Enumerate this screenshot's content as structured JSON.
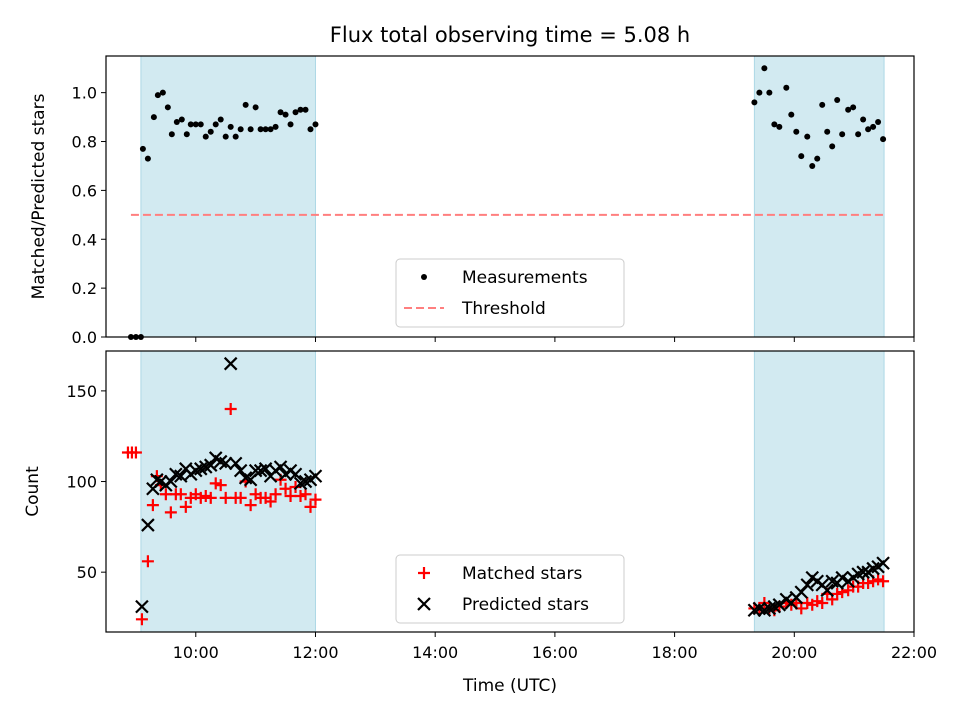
{
  "title": "Flux total observing time = 5.08 h",
  "xlabel": "Time (UTC)",
  "x_ticks": [
    "10:00",
    "12:00",
    "14:00",
    "16:00",
    "18:00",
    "20:00",
    "22:00"
  ],
  "colors": {
    "band": "#add8e6",
    "threshold": "#ff7f7f",
    "matched": "#ff0000",
    "predicted": "#000000",
    "measurement": "#000000"
  },
  "chart_data": [
    {
      "type": "scatter",
      "ylabel": "Matched/Predicted stars",
      "xlim": [
        "08:30",
        "22:00"
      ],
      "ylim": [
        0,
        1.15
      ],
      "y_ticks": [
        "0.0",
        "0.2",
        "0.4",
        "0.6",
        "0.8",
        "1.0"
      ],
      "grid": false,
      "legend_position": "lower-center",
      "observing_windows": [
        [
          "09:05",
          "12:00"
        ],
        [
          "19:20",
          "21:30"
        ]
      ],
      "series": [
        {
          "name": "Measurements",
          "marker": "dot",
          "points": [
            [
              "08:55",
              0.0
            ],
            [
              "09:00",
              0.0
            ],
            [
              "09:05",
              0.0
            ],
            [
              "09:07",
              0.77
            ],
            [
              "09:12",
              0.73
            ],
            [
              "09:18",
              0.9
            ],
            [
              "09:22",
              0.99
            ],
            [
              "09:27",
              1.0
            ],
            [
              "09:32",
              0.94
            ],
            [
              "09:36",
              0.83
            ],
            [
              "09:41",
              0.88
            ],
            [
              "09:46",
              0.89
            ],
            [
              "09:51",
              0.83
            ],
            [
              "09:55",
              0.87
            ],
            [
              "10:00",
              0.87
            ],
            [
              "10:05",
              0.87
            ],
            [
              "10:10",
              0.82
            ],
            [
              "10:15",
              0.84
            ],
            [
              "10:20",
              0.87
            ],
            [
              "10:25",
              0.89
            ],
            [
              "10:30",
              0.82
            ],
            [
              "10:35",
              0.86
            ],
            [
              "10:40",
              0.82
            ],
            [
              "10:45",
              0.85
            ],
            [
              "10:50",
              0.95
            ],
            [
              "10:55",
              0.85
            ],
            [
              "11:00",
              0.94
            ],
            [
              "11:05",
              0.85
            ],
            [
              "11:10",
              0.85
            ],
            [
              "11:15",
              0.85
            ],
            [
              "11:20",
              0.86
            ],
            [
              "11:25",
              0.92
            ],
            [
              "11:30",
              0.91
            ],
            [
              "11:35",
              0.87
            ],
            [
              "11:40",
              0.92
            ],
            [
              "11:45",
              0.93
            ],
            [
              "11:50",
              0.93
            ],
            [
              "11:55",
              0.85
            ],
            [
              "12:00",
              0.87
            ],
            [
              "19:20",
              0.96
            ],
            [
              "19:25",
              1.0
            ],
            [
              "19:30",
              1.1
            ],
            [
              "19:35",
              1.0
            ],
            [
              "19:40",
              0.87
            ],
            [
              "19:45",
              0.86
            ],
            [
              "19:52",
              1.02
            ],
            [
              "19:57",
              0.91
            ],
            [
              "20:02",
              0.84
            ],
            [
              "20:07",
              0.74
            ],
            [
              "20:13",
              0.82
            ],
            [
              "20:18",
              0.7
            ],
            [
              "20:23",
              0.73
            ],
            [
              "20:28",
              0.95
            ],
            [
              "20:33",
              0.84
            ],
            [
              "20:38",
              0.78
            ],
            [
              "20:43",
              0.97
            ],
            [
              "20:48",
              0.83
            ],
            [
              "20:54",
              0.93
            ],
            [
              "20:59",
              0.94
            ],
            [
              "21:04",
              0.83
            ],
            [
              "21:09",
              0.89
            ],
            [
              "21:14",
              0.85
            ],
            [
              "21:19",
              0.86
            ],
            [
              "21:24",
              0.88
            ],
            [
              "21:29",
              0.81
            ]
          ]
        },
        {
          "name": "Threshold",
          "style": "dashed",
          "points": [
            [
              "08:55",
              0.5
            ],
            [
              "21:30",
              0.5
            ]
          ]
        }
      ]
    },
    {
      "type": "scatter",
      "ylabel": "Count",
      "xlim": [
        "08:30",
        "22:00"
      ],
      "ylim": [
        17,
        172
      ],
      "y_ticks": [
        "50",
        "100",
        "150"
      ],
      "grid": false,
      "legend_position": "lower-center",
      "observing_windows": [
        [
          "09:05",
          "12:00"
        ],
        [
          "19:20",
          "21:30"
        ]
      ],
      "series": [
        {
          "name": "Matched stars",
          "marker": "plus",
          "points": [
            [
              "08:52",
              116
            ],
            [
              "08:56",
              116
            ],
            [
              "09:00",
              116
            ],
            [
              "09:06",
              24
            ],
            [
              "09:12",
              56
            ],
            [
              "09:17",
              87
            ],
            [
              "09:21",
              103
            ],
            [
              "09:25",
              98
            ],
            [
              "09:30",
              93
            ],
            [
              "09:35",
              83
            ],
            [
              "09:40",
              93
            ],
            [
              "09:45",
              93
            ],
            [
              "09:50",
              86
            ],
            [
              "09:55",
              91
            ],
            [
              "10:00",
              93
            ],
            [
              "10:05",
              91
            ],
            [
              "10:10",
              92
            ],
            [
              "10:15",
              91
            ],
            [
              "10:20",
              99
            ],
            [
              "10:25",
              98
            ],
            [
              "10:30",
              91
            ],
            [
              "10:35",
              140
            ],
            [
              "10:40",
              91
            ],
            [
              "10:45",
              91
            ],
            [
              "10:50",
              100
            ],
            [
              "10:55",
              87
            ],
            [
              "11:00",
              93
            ],
            [
              "11:05",
              91
            ],
            [
              "11:10",
              91
            ],
            [
              "11:15",
              89
            ],
            [
              "11:20",
              93
            ],
            [
              "11:25",
              101
            ],
            [
              "11:30",
              96
            ],
            [
              "11:35",
              92
            ],
            [
              "11:40",
              97
            ],
            [
              "11:45",
              92
            ],
            [
              "11:50",
              93
            ],
            [
              "11:55",
              86
            ],
            [
              "12:00",
              90
            ],
            [
              "19:20",
              30
            ],
            [
              "19:25",
              30
            ],
            [
              "19:30",
              33
            ],
            [
              "19:35",
              30
            ],
            [
              "19:40",
              29
            ],
            [
              "19:45",
              31
            ],
            [
              "19:52",
              33
            ],
            [
              "19:57",
              32
            ],
            [
              "20:02",
              33
            ],
            [
              "20:07",
              30
            ],
            [
              "20:13",
              33
            ],
            [
              "20:18",
              32
            ],
            [
              "20:23",
              34
            ],
            [
              "20:28",
              33
            ],
            [
              "20:33",
              38
            ],
            [
              "20:38",
              35
            ],
            [
              "20:43",
              38
            ],
            [
              "20:48",
              39
            ],
            [
              "20:54",
              40
            ],
            [
              "20:59",
              42
            ],
            [
              "21:04",
              42
            ],
            [
              "21:09",
              44
            ],
            [
              "21:14",
              44
            ],
            [
              "21:19",
              45
            ],
            [
              "21:24",
              46
            ],
            [
              "21:29",
              45
            ]
          ]
        },
        {
          "name": "Predicted stars",
          "marker": "x",
          "points": [
            [
              "09:06",
              31
            ],
            [
              "09:12",
              76
            ],
            [
              "09:17",
              96
            ],
            [
              "09:21",
              101
            ],
            [
              "09:25",
              100
            ],
            [
              "09:30",
              98
            ],
            [
              "09:35",
              100
            ],
            [
              "09:40",
              104
            ],
            [
              "09:45",
              103
            ],
            [
              "09:50",
              107
            ],
            [
              "09:55",
              104
            ],
            [
              "10:00",
              106
            ],
            [
              "10:05",
              107
            ],
            [
              "10:10",
              108
            ],
            [
              "10:15",
              109
            ],
            [
              "10:20",
              113
            ],
            [
              "10:25",
              111
            ],
            [
              "10:30",
              110
            ],
            [
              "10:35",
              165
            ],
            [
              "10:40",
              110
            ],
            [
              "10:45",
              106
            ],
            [
              "10:50",
              102
            ],
            [
              "10:55",
              101
            ],
            [
              "11:00",
              106
            ],
            [
              "11:05",
              106
            ],
            [
              "11:10",
              107
            ],
            [
              "11:15",
              103
            ],
            [
              "11:20",
              106
            ],
            [
              "11:25",
              108
            ],
            [
              "11:30",
              104
            ],
            [
              "11:35",
              106
            ],
            [
              "11:40",
              104
            ],
            [
              "11:45",
              99
            ],
            [
              "11:50",
              100
            ],
            [
              "11:55",
              101
            ],
            [
              "12:00",
              103
            ],
            [
              "19:20",
              29
            ],
            [
              "19:25",
              30
            ],
            [
              "19:30",
              29
            ],
            [
              "19:35",
              30
            ],
            [
              "19:40",
              31
            ],
            [
              "19:45",
              32
            ],
            [
              "19:52",
              35
            ],
            [
              "19:57",
              33
            ],
            [
              "20:02",
              36
            ],
            [
              "20:07",
              39
            ],
            [
              "20:13",
              43
            ],
            [
              "20:18",
              47
            ],
            [
              "20:23",
              45
            ],
            [
              "20:28",
              43
            ],
            [
              "20:33",
              40
            ],
            [
              "20:38",
              45
            ],
            [
              "20:43",
              44
            ],
            [
              "20:48",
              47
            ],
            [
              "20:54",
              45
            ],
            [
              "20:59",
              47
            ],
            [
              "21:04",
              49
            ],
            [
              "21:09",
              50
            ],
            [
              "21:14",
              50
            ],
            [
              "21:19",
              52
            ],
            [
              "21:24",
              53
            ],
            [
              "21:29",
              55
            ]
          ]
        }
      ]
    }
  ]
}
